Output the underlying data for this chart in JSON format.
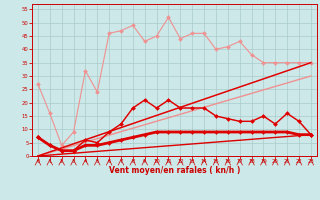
{
  "x": [
    0,
    1,
    2,
    3,
    4,
    5,
    6,
    7,
    8,
    9,
    10,
    11,
    12,
    13,
    14,
    15,
    16,
    17,
    18,
    19,
    20,
    21,
    22,
    23
  ],
  "series": [
    {
      "name": "rafales_light",
      "color": "#f09090",
      "linewidth": 0.8,
      "marker": "D",
      "markersize": 2.0,
      "y": [
        27,
        16,
        4,
        9,
        32,
        24,
        46,
        47,
        49,
        43,
        45,
        52,
        44,
        46,
        46,
        40,
        41,
        43,
        38,
        35,
        35,
        35,
        35,
        35
      ]
    },
    {
      "name": "vent_light",
      "color": "#f09090",
      "linewidth": 0.8,
      "marker": "D",
      "markersize": 2.0,
      "y": [
        7,
        4,
        2,
        2,
        6,
        5,
        9,
        12,
        18,
        21,
        18,
        21,
        18,
        18,
        18,
        15,
        14,
        13,
        13,
        15,
        12,
        16,
        13,
        8
      ]
    },
    {
      "name": "trend_light1",
      "color": "#f09090",
      "linewidth": 1.0,
      "marker": null,
      "markersize": 0,
      "y": [
        0,
        1.52,
        3.04,
        4.57,
        6.09,
        7.61,
        9.13,
        10.65,
        12.17,
        13.7,
        15.22,
        16.74,
        18.26,
        19.78,
        21.3,
        22.83,
        24.35,
        25.87,
        27.39,
        28.91,
        30.43,
        31.96,
        33.48,
        35.0
      ]
    },
    {
      "name": "trend_light2",
      "color": "#f09090",
      "linewidth": 1.0,
      "marker": null,
      "markersize": 0,
      "y": [
        0,
        1.3,
        2.61,
        3.91,
        5.22,
        6.52,
        7.83,
        9.13,
        10.43,
        11.74,
        13.04,
        14.35,
        15.65,
        16.96,
        18.26,
        19.57,
        20.87,
        22.17,
        23.48,
        24.78,
        26.09,
        27.39,
        28.7,
        30.0
      ]
    },
    {
      "name": "rafales_dark",
      "color": "#dd0000",
      "linewidth": 1.0,
      "marker": "D",
      "markersize": 2.0,
      "y": [
        7,
        4,
        2,
        2,
        6,
        5,
        9,
        12,
        18,
        21,
        18,
        21,
        18,
        18,
        18,
        15,
        14,
        13,
        13,
        15,
        12,
        16,
        13,
        8
      ]
    },
    {
      "name": "vent_dark",
      "color": "#dd0000",
      "linewidth": 2.0,
      "marker": "D",
      "markersize": 2.0,
      "y": [
        7,
        4,
        2,
        2,
        4,
        4,
        5,
        6,
        7,
        8,
        9,
        9,
        9,
        9,
        9,
        9,
        9,
        9,
        9,
        9,
        9,
        9,
        8,
        8
      ]
    },
    {
      "name": "trend_dark1",
      "color": "#dd0000",
      "linewidth": 1.0,
      "marker": null,
      "markersize": 0,
      "y": [
        0,
        1.52,
        3.04,
        4.57,
        6.09,
        7.61,
        9.13,
        10.65,
        12.17,
        13.7,
        15.22,
        16.74,
        18.26,
        19.78,
        21.3,
        22.83,
        24.35,
        25.87,
        27.39,
        28.91,
        30.43,
        31.96,
        33.48,
        35.0
      ]
    },
    {
      "name": "trend_dark2",
      "color": "#dd0000",
      "linewidth": 1.0,
      "marker": null,
      "markersize": 0,
      "y": [
        0,
        0.35,
        0.7,
        1.04,
        1.39,
        1.74,
        2.09,
        2.43,
        2.78,
        3.13,
        3.48,
        3.83,
        4.17,
        4.52,
        4.87,
        5.22,
        5.57,
        5.91,
        6.26,
        6.61,
        6.96,
        7.3,
        7.65,
        8.0
      ]
    }
  ],
  "xlim": [
    -0.5,
    23.5
  ],
  "ylim": [
    0,
    57
  ],
  "yticks": [
    0,
    5,
    10,
    15,
    20,
    25,
    30,
    35,
    40,
    45,
    50,
    55
  ],
  "xticks": [
    0,
    1,
    2,
    3,
    4,
    5,
    6,
    7,
    8,
    9,
    10,
    11,
    12,
    13,
    14,
    15,
    16,
    17,
    18,
    19,
    20,
    21,
    22,
    23
  ],
  "xlabel": "Vent moyen/en rafales ( kn/h )",
  "background_color": "#cce8e8",
  "grid_color": "#aacccc",
  "tick_color": "#cc0000",
  "label_color": "#cc0000",
  "spine_color": "#cc0000"
}
